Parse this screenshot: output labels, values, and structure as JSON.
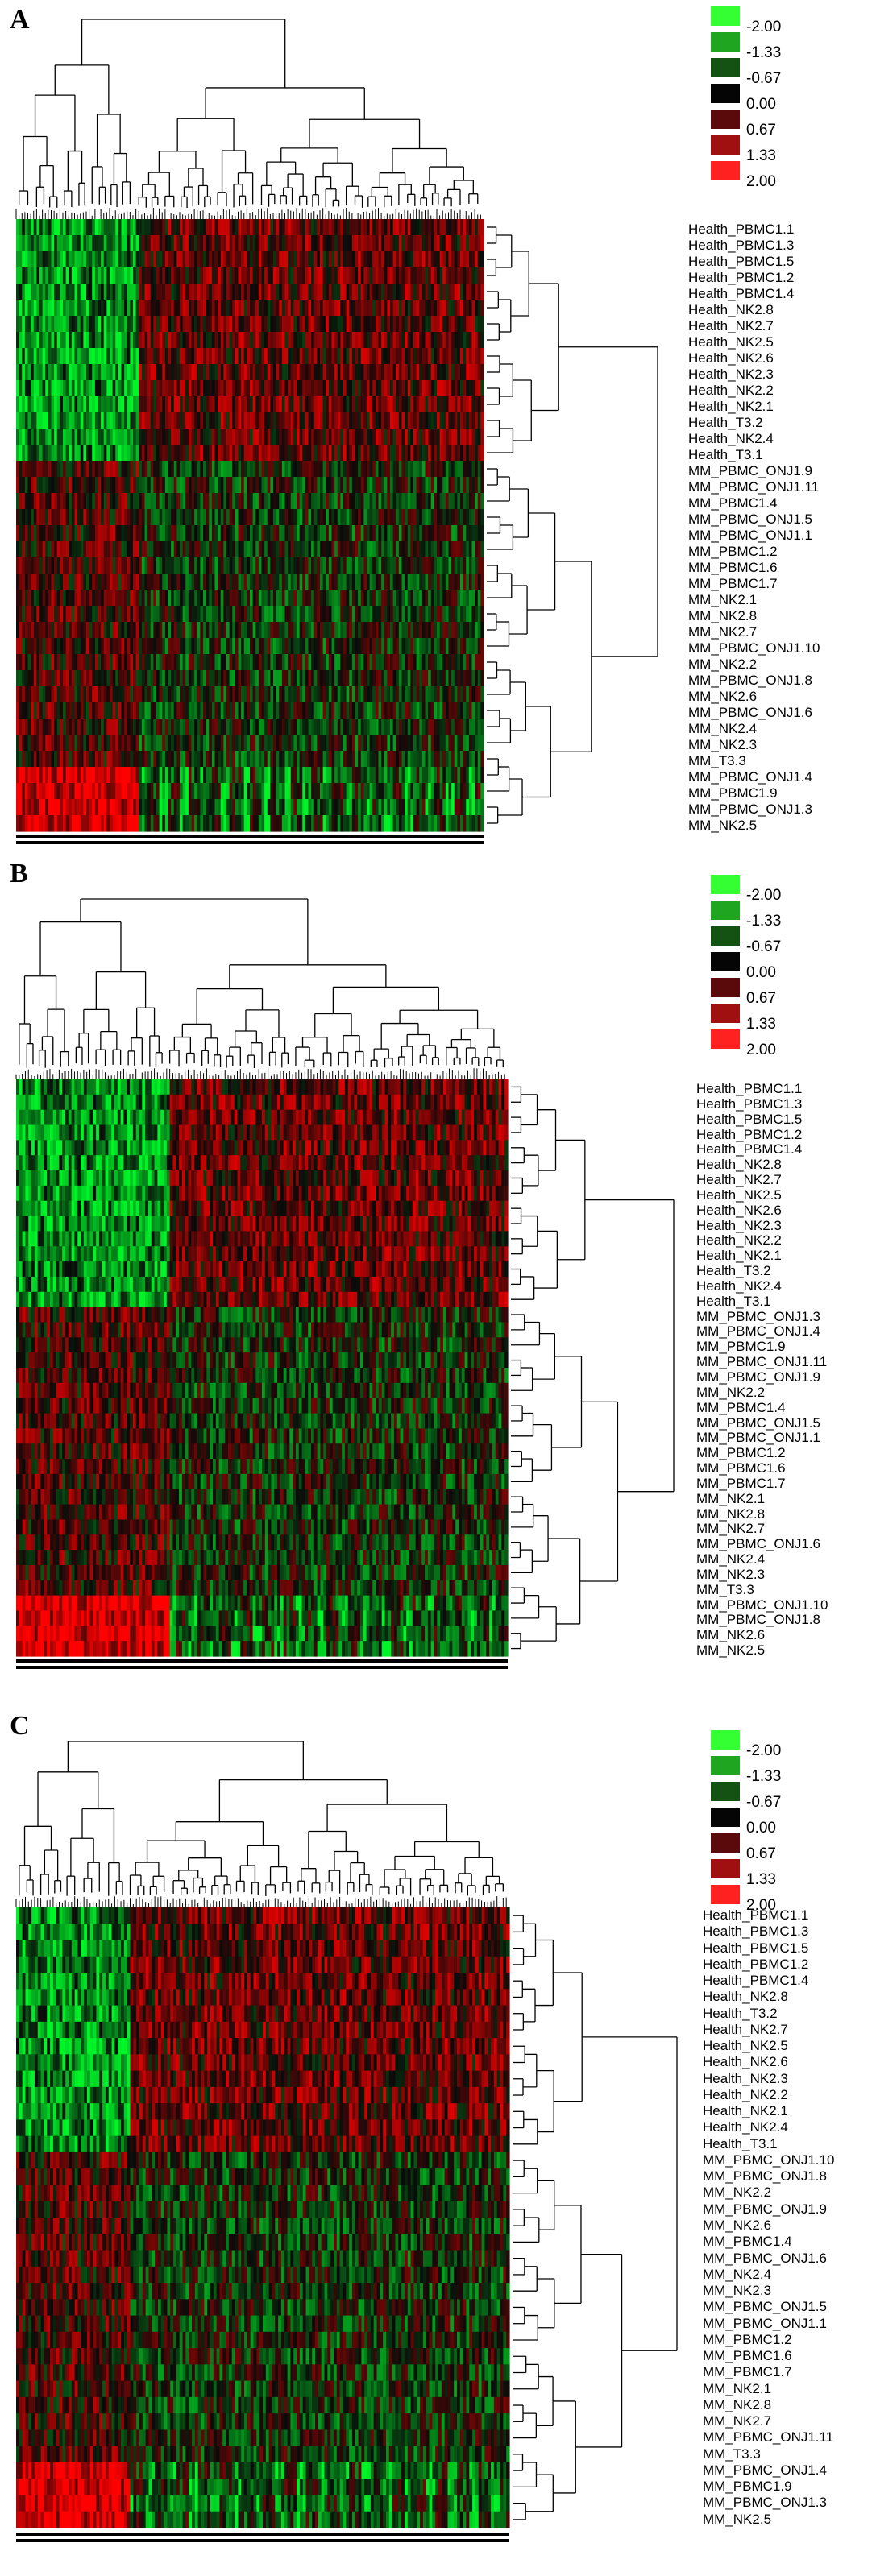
{
  "legend": {
    "labels": [
      "-2.00",
      "-1.33",
      "-0.67",
      "0.00",
      "0.67",
      "1.33",
      "2.00"
    ],
    "colors": [
      "#33ff33",
      "#1fa51f",
      "#145214",
      "#050505",
      "#5a0a0a",
      "#a01010",
      "#ff2020"
    ]
  },
  "panels": [
    {
      "letter": "A",
      "rows": [
        "Health_PBMC1.1",
        "Health_PBMC1.3",
        "Health_PBMC1.5",
        "Health_PBMC1.2",
        "Health_PBMC1.4",
        "Health_NK2.8",
        "Health_NK2.7",
        "Health_NK2.5",
        "Health_NK2.6",
        "Health_NK2.3",
        "Health_NK2.2",
        "Health_NK2.1",
        "Health_T3.2",
        "Health_NK2.4",
        "Health_T3.1",
        "MM_PBMC_ONJ1.9",
        "MM_PBMC_ONJ1.11",
        "MM_PBMC1.4",
        "MM_PBMC_ONJ1.5",
        "MM_PBMC_ONJ1.1",
        "MM_PBMC1.2",
        "MM_PBMC1.6",
        "MM_PBMC1.7",
        "MM_NK2.1",
        "MM_NK2.8",
        "MM_NK2.7",
        "MM_PBMC_ONJ1.10",
        "MM_NK2.2",
        "MM_PBMC_ONJ1.8",
        "MM_NK2.6",
        "MM_PBMC_ONJ1.6",
        "MM_NK2.4",
        "MM_NK2.3",
        "MM_T3.3",
        "MM_PBMC_ONJ1.4",
        "MM_PBMC1.9",
        "MM_PBMC_ONJ1.3",
        "MM_NK2.5"
      ]
    },
    {
      "letter": "B",
      "rows": [
        "Health_PBMC1.1",
        "Health_PBMC1.3",
        "Health_PBMC1.5",
        "Health_PBMC1.2",
        "Health_PBMC1.4",
        "Health_NK2.8",
        "Health_NK2.7",
        "Health_NK2.5",
        "Health_NK2.6",
        "Health_NK2.3",
        "Health_NK2.2",
        "Health_NK2.1",
        "Health_T3.2",
        "Health_NK2.4",
        "Health_T3.1",
        "MM_PBMC_ONJ1.3",
        "MM_PBMC_ONJ1.4",
        "MM_PBMC1.9",
        "MM_PBMC_ONJ1.11",
        "MM_PBMC_ONJ1.9",
        "MM_NK2.2",
        "MM_PBMC1.4",
        "MM_PBMC_ONJ1.5",
        "MM_PBMC_ONJ1.1",
        "MM_PBMC1.2",
        "MM_PBMC1.6",
        "MM_PBMC1.7",
        "MM_NK2.1",
        "MM_NK2.8",
        "MM_NK2.7",
        "MM_PBMC_ONJ1.6",
        "MM_NK2.4",
        "MM_NK2.3",
        "MM_T3.3",
        "MM_PBMC_ONJ1.10",
        "MM_PBMC_ONJ1.8",
        "MM_NK2.6",
        "MM_NK2.5"
      ]
    },
    {
      "letter": "C",
      "rows": [
        "Health_PBMC1.1",
        "Health_PBMC1.3",
        "Health_PBMC1.5",
        "Health_PBMC1.2",
        "Health_PBMC1.4",
        "Health_NK2.8",
        "Health_T3.2",
        "Health_NK2.7",
        "Health_NK2.5",
        "Health_NK2.6",
        "Health_NK2.3",
        "Health_NK2.2",
        "Health_NK2.1",
        "Health_NK2.4",
        "Health_T3.1",
        "MM_PBMC_ONJ1.10",
        "MM_PBMC_ONJ1.8",
        "MM_NK2.2",
        "MM_PBMC_ONJ1.9",
        "MM_NK2.6",
        "MM_PBMC1.4",
        "MM_PBMC_ONJ1.6",
        "MM_NK2.4",
        "MM_NK2.3",
        "MM_PBMC_ONJ1.5",
        "MM_PBMC_ONJ1.1",
        "MM_PBMC1.2",
        "MM_PBMC1.6",
        "MM_PBMC1.7",
        "MM_NK2.1",
        "MM_NK2.8",
        "MM_NK2.7",
        "MM_PBMC_ONJ1.11",
        "MM_T3.3",
        "MM_PBMC_ONJ1.4",
        "MM_PBMC1.9",
        "MM_PBMC_ONJ1.3",
        "MM_NK2.5"
      ]
    }
  ]
}
